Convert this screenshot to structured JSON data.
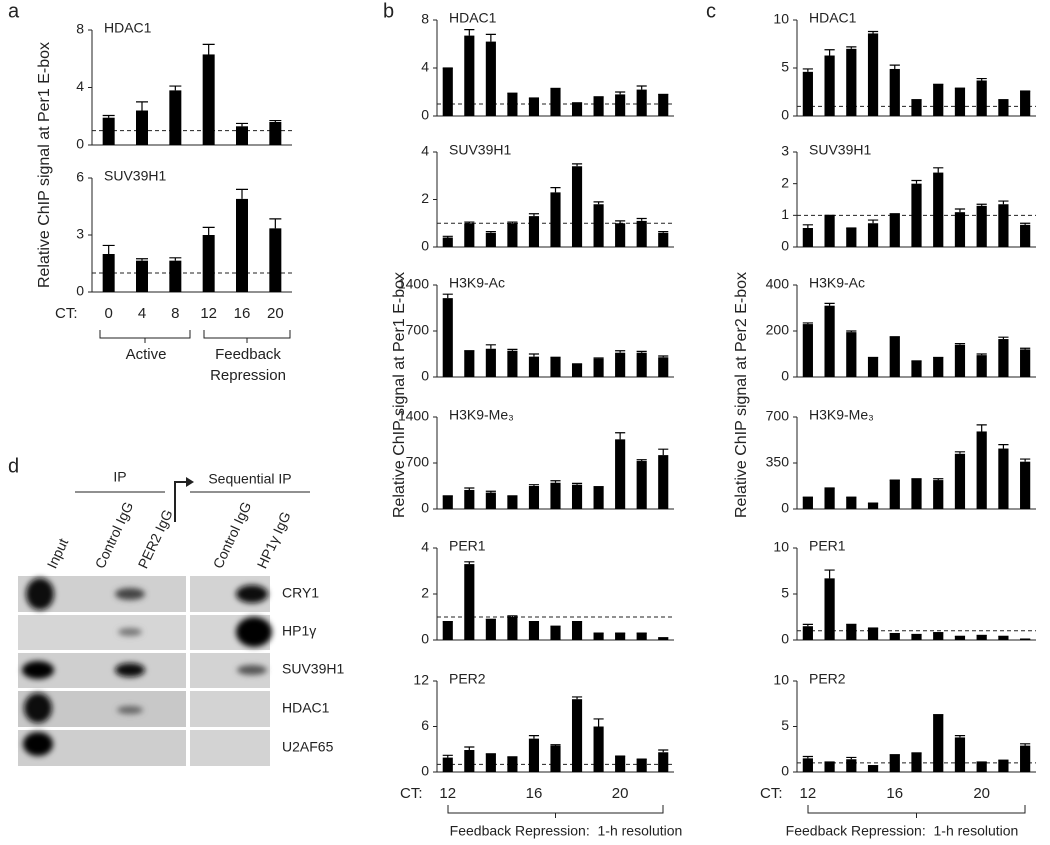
{
  "chart_data": [
    {
      "type": "bar",
      "title": "HDAC1",
      "color": "#000000",
      "values": [
        1.9,
        2.4,
        3.8,
        6.3,
        1.3,
        1.6
      ],
      "errors": [
        0.15,
        0.6,
        0.3,
        0.7,
        0.2,
        0.1
      ],
      "ylim": [
        0,
        8
      ],
      "yticks": [
        0,
        4,
        8
      ],
      "reference_line": 1
    },
    {
      "type": "bar",
      "title": "SUV39H1",
      "color": "#000000",
      "values": [
        2.0,
        1.65,
        1.65,
        3.0,
        4.9,
        3.35
      ],
      "errors": [
        0.45,
        0.1,
        0.15,
        0.4,
        0.5,
        0.5
      ],
      "ylim": [
        0,
        6
      ],
      "yticks": [
        0,
        3,
        6
      ],
      "reference_line": 1,
      "x_label": "CT:",
      "categories": [
        "0",
        "4",
        "8",
        "12",
        "16",
        "20"
      ]
    },
    {
      "type": "bar",
      "title": "HDAC1",
      "color": "#000000",
      "values": [
        4.0,
        6.7,
        6.2,
        1.9,
        1.5,
        2.3,
        1.1,
        1.6,
        1.8,
        2.2,
        1.8
      ],
      "errors": [
        0,
        0.5,
        0.6,
        0,
        0,
        0,
        0,
        0,
        0.2,
        0.3,
        0
      ],
      "ylim": [
        0,
        8
      ],
      "yticks": [
        0,
        4,
        8
      ],
      "reference_line": 1
    },
    {
      "type": "bar",
      "title": "SUV39H1",
      "color": "#000000",
      "values": [
        0.4,
        1.0,
        0.6,
        1.0,
        1.3,
        2.3,
        3.4,
        1.8,
        1.0,
        1.1,
        0.6
      ],
      "errors": [
        0.05,
        0.05,
        0.05,
        0.05,
        0.1,
        0.2,
        0.1,
        0.1,
        0.1,
        0.1,
        0.05
      ],
      "ylim": [
        0,
        4
      ],
      "yticks": [
        0,
        2,
        4
      ],
      "reference_line": 1
    },
    {
      "type": "bar",
      "title": "H3K9-Ac",
      "color": "#000000",
      "values": [
        1200,
        400,
        430,
        400,
        310,
        300,
        200,
        280,
        370,
        370,
        300
      ],
      "errors": [
        60,
        0,
        60,
        20,
        40,
        0,
        0,
        10,
        30,
        20,
        20
      ],
      "ylim": [
        0,
        1400
      ],
      "yticks": [
        0,
        700,
        1400
      ]
    },
    {
      "type": "bar",
      "title": "H3K9-Me₃",
      "color": "#000000",
      "values": [
        200,
        290,
        250,
        200,
        350,
        400,
        370,
        340,
        1060,
        730,
        820
      ],
      "errors": [
        0,
        30,
        20,
        0,
        20,
        30,
        20,
        0,
        100,
        20,
        90
      ],
      "ylim": [
        0,
        1400
      ],
      "yticks": [
        0,
        700,
        1400
      ]
    },
    {
      "type": "bar",
      "title": "PER1",
      "color": "#000000",
      "values": [
        0.8,
        3.3,
        0.9,
        1.0,
        0.8,
        0.6,
        0.8,
        0.3,
        0.3,
        0.3,
        0.1
      ],
      "errors": [
        0,
        0.1,
        0,
        0.05,
        0,
        0,
        0,
        0,
        0,
        0,
        0
      ],
      "ylim": [
        0,
        4
      ],
      "yticks": [
        0,
        2,
        4
      ],
      "reference_line": 1
    },
    {
      "type": "bar",
      "title": "PER2",
      "color": "#000000",
      "values": [
        1.9,
        2.9,
        2.4,
        2.0,
        4.4,
        3.5,
        9.6,
        6.0,
        2.1,
        1.7,
        2.6
      ],
      "errors": [
        0.3,
        0.4,
        0,
        0,
        0.4,
        0.1,
        0.3,
        1.0,
        0,
        0,
        0.3
      ],
      "ylim": [
        0,
        12
      ],
      "yticks": [
        0,
        6,
        12
      ],
      "reference_line": 1,
      "x_label": "CT:",
      "categories": [
        "12",
        null,
        null,
        null,
        "16",
        null,
        null,
        null,
        "20",
        null,
        null
      ]
    },
    {
      "type": "bar",
      "title": "HDAC1",
      "color": "#000000",
      "values": [
        4.6,
        6.3,
        7.0,
        8.6,
        4.9,
        1.7,
        3.3,
        2.9,
        3.7,
        1.7,
        2.6
      ],
      "errors": [
        0.3,
        0.6,
        0.2,
        0.2,
        0.4,
        0,
        0,
        0,
        0.2,
        0,
        0
      ],
      "ylim": [
        0,
        10
      ],
      "yticks": [
        0,
        5,
        10
      ],
      "reference_line": 1
    },
    {
      "type": "bar",
      "title": "SUV39H1",
      "color": "#000000",
      "values": [
        0.6,
        1.0,
        0.6,
        0.75,
        1.05,
        2.0,
        2.35,
        1.1,
        1.3,
        1.35,
        0.7
      ],
      "errors": [
        0.1,
        0,
        0,
        0.1,
        0,
        0.1,
        0.15,
        0.1,
        0.05,
        0.1,
        0.05
      ],
      "ylim": [
        0,
        3
      ],
      "yticks": [
        0,
        1,
        2,
        3
      ],
      "reference_line": 1
    },
    {
      "type": "bar",
      "title": "H3K9-Ac",
      "color": "#000000",
      "values": [
        230,
        310,
        195,
        85,
        175,
        70,
        85,
        140,
        95,
        165,
        120
      ],
      "errors": [
        5,
        10,
        5,
        0,
        0,
        0,
        0,
        5,
        5,
        8,
        5
      ],
      "ylim": [
        0,
        400
      ],
      "yticks": [
        0,
        200,
        400
      ]
    },
    {
      "type": "bar",
      "title": "H3K9-Me₃",
      "color": "#000000",
      "values": [
        90,
        160,
        90,
        45,
        220,
        230,
        220,
        420,
        590,
        460,
        360
      ],
      "errors": [
        0,
        0,
        0,
        0,
        0,
        0,
        10,
        15,
        50,
        30,
        20
      ],
      "ylim": [
        0,
        700
      ],
      "yticks": [
        0,
        350,
        700
      ]
    },
    {
      "type": "bar",
      "title": "PER1",
      "color": "#000000",
      "values": [
        1.5,
        6.7,
        1.7,
        1.3,
        0.7,
        0.6,
        0.8,
        0.4,
        0.5,
        0.4,
        0.1
      ],
      "errors": [
        0.2,
        0.9,
        0,
        0,
        0,
        0,
        0,
        0,
        0,
        0,
        0
      ],
      "ylim": [
        0,
        10
      ],
      "yticks": [
        0,
        5,
        10
      ],
      "reference_line": 1
    },
    {
      "type": "bar",
      "title": "PER2",
      "color": "#000000",
      "values": [
        1.5,
        1.1,
        1.4,
        0.7,
        1.9,
        2.1,
        6.3,
        3.8,
        1.1,
        1.3,
        2.9
      ],
      "errors": [
        0.2,
        0,
        0.2,
        0,
        0,
        0,
        0,
        0.2,
        0,
        0,
        0.2
      ],
      "ylim": [
        0,
        10
      ],
      "yticks": [
        0,
        5,
        10
      ],
      "reference_line": 1,
      "x_label": "CT:",
      "categories": [
        "12",
        null,
        null,
        null,
        "16",
        null,
        null,
        null,
        "20",
        null,
        null
      ]
    }
  ],
  "panels": {
    "a": {
      "letter": "a",
      "y_label": "Relative ChIP signal at Per1 E-box",
      "groups": [
        "Active",
        "Feedback Repression"
      ]
    },
    "b": {
      "letter": "b",
      "y_label": "Relative ChIP signal at Per1 E-box",
      "footer": "Feedback Repression:  1-h resolution"
    },
    "c": {
      "letter": "c",
      "y_label": "Relative ChIP signal at Per2 E-box",
      "footer": "Feedback Repression:  1-h resolution"
    },
    "d": {
      "letter": "d"
    }
  },
  "blot": {
    "ip": "IP",
    "sequential_ip": "Sequential IP",
    "lanes": [
      "Input",
      "Control IgG",
      "PER2 IgG",
      "Control IgG",
      "HP1γ IgG"
    ],
    "rows": [
      "CRY1",
      "HP1γ",
      "SUV39H1",
      "HDAC1",
      "U2AF65"
    ]
  }
}
